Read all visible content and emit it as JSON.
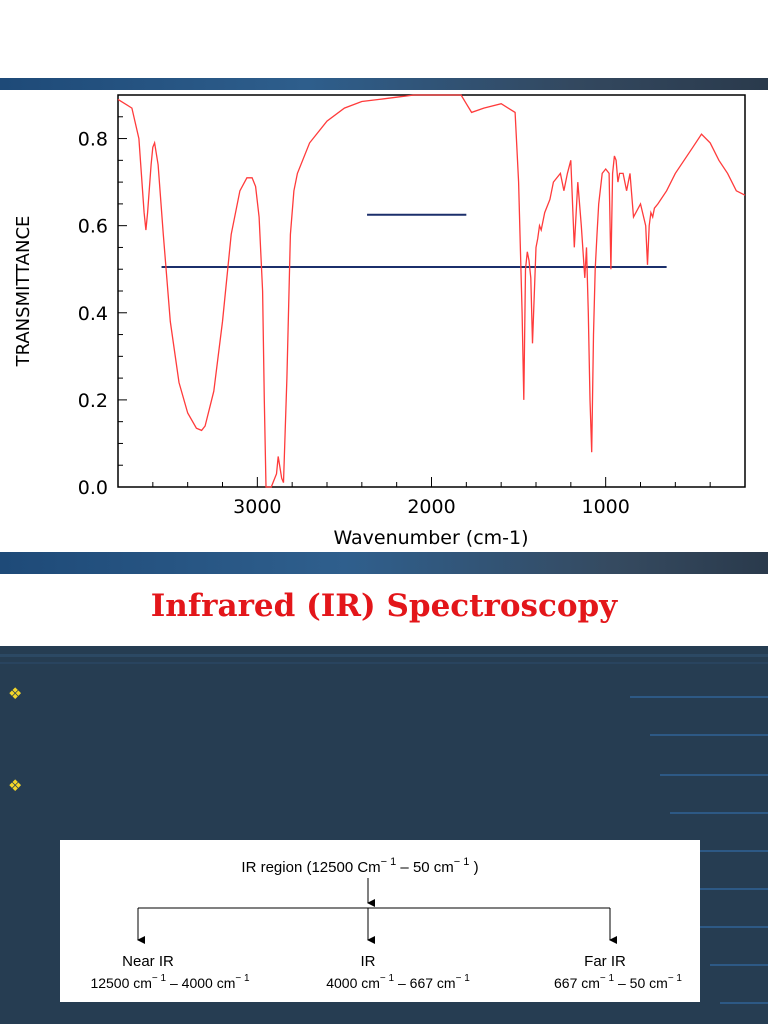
{
  "slide": {
    "title": "Infrared (IR) Spectroscopy",
    "title_color": "#e3161a",
    "bullet_icon": "four-diamond-bullet-icon",
    "bullet_color": "#f2d52a",
    "panel_color": "#263d52"
  },
  "chart_data": {
    "type": "line",
    "xlabel": "Wavenumber (cm-1)",
    "ylabel": "TRANSMITTANCE",
    "xlim": [
      3800,
      200
    ],
    "ylim": [
      0.0,
      0.9
    ],
    "x_ticks": [
      3000,
      2000,
      1000
    ],
    "x_tick_labels": [
      "3000",
      "2000",
      "1000"
    ],
    "y_ticks": [
      0.0,
      0.2,
      0.4,
      0.6,
      0.8
    ],
    "y_tick_labels": [
      "0.0",
      "0.2",
      "0.4",
      "0.6",
      "0.8"
    ],
    "grid": false,
    "line_color": "#ff3b3b",
    "series": [
      {
        "x": [
          3800,
          3720,
          3680,
          3650,
          3640,
          3630,
          3610,
          3600,
          3590,
          3570,
          3540,
          3500,
          3450,
          3400,
          3350,
          3320,
          3300,
          3250,
          3200,
          3150,
          3100,
          3060,
          3030,
          3010,
          2990,
          2970,
          2960,
          2950,
          2940,
          2930,
          2920,
          2910,
          2890,
          2880,
          2860,
          2850,
          2830,
          2810,
          2790,
          2770,
          2700,
          2600,
          2500,
          2400,
          2300,
          2200,
          2100,
          2000,
          1900,
          1850,
          1830,
          1800,
          1770,
          1700,
          1600,
          1520,
          1500,
          1480,
          1470,
          1460,
          1450,
          1440,
          1430,
          1420,
          1400,
          1390,
          1380,
          1370,
          1350,
          1320,
          1300,
          1260,
          1240,
          1220,
          1200,
          1180,
          1160,
          1140,
          1120,
          1110,
          1100,
          1090,
          1080,
          1070,
          1060,
          1050,
          1040,
          1020,
          1000,
          980,
          970,
          960,
          950,
          940,
          930,
          920,
          900,
          880,
          860,
          840,
          800,
          770,
          760,
          750,
          740,
          730,
          720,
          700,
          650,
          600,
          500,
          450,
          400,
          350,
          300,
          250,
          200
        ],
        "y": [
          0.89,
          0.87,
          0.8,
          0.63,
          0.59,
          0.63,
          0.74,
          0.78,
          0.79,
          0.74,
          0.58,
          0.38,
          0.24,
          0.17,
          0.135,
          0.13,
          0.14,
          0.22,
          0.38,
          0.58,
          0.68,
          0.71,
          0.71,
          0.69,
          0.62,
          0.45,
          0.2,
          0.0,
          0.0,
          0.0,
          0.0,
          0.01,
          0.03,
          0.07,
          0.02,
          0.01,
          0.25,
          0.58,
          0.68,
          0.72,
          0.79,
          0.84,
          0.87,
          0.885,
          0.89,
          0.895,
          0.9,
          0.9,
          0.9,
          0.9,
          0.9,
          0.88,
          0.86,
          0.87,
          0.88,
          0.86,
          0.7,
          0.4,
          0.2,
          0.5,
          0.54,
          0.52,
          0.48,
          0.33,
          0.55,
          0.57,
          0.6,
          0.59,
          0.63,
          0.66,
          0.7,
          0.72,
          0.68,
          0.72,
          0.75,
          0.55,
          0.7,
          0.6,
          0.48,
          0.55,
          0.4,
          0.2,
          0.08,
          0.35,
          0.5,
          0.58,
          0.65,
          0.72,
          0.73,
          0.72,
          0.5,
          0.72,
          0.76,
          0.75,
          0.7,
          0.72,
          0.72,
          0.68,
          0.72,
          0.62,
          0.65,
          0.6,
          0.51,
          0.6,
          0.63,
          0.62,
          0.64,
          0.65,
          0.68,
          0.72,
          0.78,
          0.81,
          0.79,
          0.75,
          0.72,
          0.68,
          0.67
        ]
      }
    ],
    "overlay_lines": [
      {
        "x": [
          2370,
          1800
        ],
        "y": [
          0.625,
          0.625
        ],
        "color": "#1b2f6b"
      },
      {
        "x": [
          3550,
          650
        ],
        "y": [
          0.505,
          0.505
        ],
        "color": "#1b2f6b"
      }
    ]
  },
  "diagram": {
    "root_label": "IR region (12500 Cm",
    "root_sup": "− 1",
    "root_mid": " – 50 cm",
    "root_end": " )",
    "children": [
      {
        "name": "Near IR",
        "range_a": "12500 cm",
        "range_b": " – 4000 cm"
      },
      {
        "name": "IR",
        "range_a": "4000 cm",
        "range_b": " – 667 cm"
      },
      {
        "name": "Far IR",
        "range_a": "667 cm",
        "range_b": " – 50 cm"
      }
    ],
    "sup": "− 1"
  }
}
